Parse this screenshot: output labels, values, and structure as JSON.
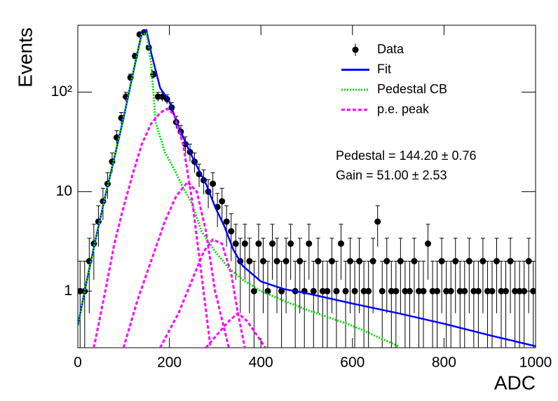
{
  "chart_data": {
    "type": "errorbar",
    "x_label": "ADC",
    "y_label": "Events",
    "log_y": true,
    "legend_position": "upper-right",
    "xlim": [
      0,
      1000
    ],
    "ylim": [
      0.27,
      470
    ],
    "xticks": [
      0,
      200,
      400,
      600,
      800,
      1000
    ],
    "yticks": [
      1,
      10,
      {
        "value": 100,
        "label": "10²"
      }
    ],
    "annotations": [
      "Pedestal = 144.20 ± 0.76",
      "Gain = 51.00 ± 2.53"
    ],
    "series": [
      {
        "name": "Data",
        "type": "errorbar",
        "color": "#000000",
        "x": [
          5,
          15,
          25,
          35,
          45,
          55,
          65,
          75,
          85,
          95,
          105,
          115,
          125,
          135,
          145,
          155,
          165,
          175,
          185,
          195,
          205,
          215,
          225,
          235,
          245,
          255,
          265,
          275,
          285,
          295,
          305,
          315,
          325,
          335,
          345,
          355,
          365,
          375,
          385,
          395,
          405,
          415,
          425,
          435,
          445,
          455,
          465,
          475,
          485,
          495,
          505,
          515,
          525,
          535,
          545,
          555,
          565,
          575,
          585,
          595,
          605,
          615,
          625,
          635,
          645,
          655,
          665,
          675,
          685,
          695,
          705,
          715,
          725,
          735,
          745,
          755,
          765,
          775,
          785,
          795,
          805,
          815,
          825,
          835,
          845,
          855,
          865,
          875,
          885,
          895,
          905,
          915,
          925,
          935,
          945,
          955,
          965,
          975,
          985,
          995
        ],
        "values": [
          1,
          1,
          2,
          3,
          5,
          8,
          12,
          20,
          35,
          55,
          90,
          140,
          230,
          380,
          400,
          280,
          150,
          90,
          90,
          85,
          70,
          50,
          40,
          30,
          25,
          20,
          15,
          13,
          10,
          12,
          7,
          8,
          5,
          4,
          3,
          2,
          3,
          2,
          1,
          3,
          2,
          1,
          3,
          2,
          1,
          2,
          3,
          1,
          2,
          1,
          3,
          1,
          2,
          1,
          1,
          2,
          1,
          3,
          1,
          2,
          1,
          2,
          1,
          1,
          2,
          5,
          1,
          2,
          1,
          1,
          2,
          1,
          1,
          2,
          1,
          1,
          3,
          1,
          1,
          2,
          1,
          1,
          2,
          1,
          1,
          2,
          1,
          1,
          2,
          1,
          1,
          2,
          1,
          1,
          2,
          1,
          1,
          1,
          2,
          1
        ],
        "errors": [
          1,
          1,
          1.4,
          1.7,
          2.2,
          2.8,
          3.5,
          4.5,
          5.9,
          7.4,
          9.5,
          11.8,
          15.2,
          19.5,
          20,
          16.7,
          12.2,
          9.5,
          9.5,
          9.2,
          8.4,
          7.1,
          6.3,
          5.5,
          5,
          4.5,
          3.9,
          3.6,
          3.2,
          3.5,
          2.6,
          2.8,
          2.2,
          2,
          1.7,
          1.4,
          1.7,
          1.4,
          1,
          1.7,
          1.4,
          1,
          1.7,
          1.4,
          1,
          1.4,
          1.7,
          1,
          1.4,
          1,
          1.7,
          1,
          1.4,
          1,
          1,
          1.4,
          1,
          1.7,
          1,
          1.4,
          1,
          1.4,
          1,
          1,
          1.4,
          2.2,
          1,
          1.4,
          1,
          1,
          1.4,
          1,
          1,
          1.4,
          1,
          1,
          1.7,
          1,
          1,
          1.4,
          1,
          1,
          1.4,
          1,
          1,
          1.4,
          1,
          1,
          1.4,
          1,
          1,
          1.4,
          1,
          1,
          1.4,
          1,
          1,
          1,
          1.4,
          1
        ]
      },
      {
        "name": "Fit",
        "type": "line",
        "color": "#0000ff",
        "line_style": "solid",
        "x": [
          0,
          20,
          40,
          60,
          80,
          100,
          120,
          140,
          150,
          160,
          180,
          200,
          220,
          240,
          260,
          280,
          300,
          320,
          340,
          360,
          400,
          450,
          500,
          600,
          700,
          800,
          900,
          1000
        ],
        "values": [
          0.45,
          1.3,
          3.5,
          9,
          22,
          55,
          150,
          400,
          420,
          250,
          110,
          80,
          45,
          28,
          18,
          12,
          7,
          4.5,
          2.6,
          1.8,
          1.25,
          1.05,
          0.95,
          0.75,
          0.6,
          0.47,
          0.36,
          0.28
        ]
      },
      {
        "name": "Pedestal CB",
        "type": "line",
        "color": "#00dd00",
        "line_style": "dotted",
        "x": [
          0,
          20,
          40,
          60,
          80,
          100,
          120,
          140,
          150,
          160,
          170,
          190,
          210,
          230,
          250,
          270,
          300,
          330,
          360,
          400,
          450,
          500,
          600,
          700
        ],
        "values": [
          0.45,
          1.3,
          3.5,
          9,
          22,
          55,
          150,
          380,
          390,
          200,
          50,
          25,
          17,
          11,
          7.5,
          4,
          2.5,
          1.7,
          1.3,
          1.0,
          0.8,
          0.65,
          0.45,
          0.28
        ]
      },
      {
        "name": "p.e. peak",
        "type": "line",
        "color": "#ff00ff",
        "line_style": "dashed",
        "x": [
          35,
          60,
          80,
          100,
          120,
          140,
          160,
          180,
          195,
          210,
          230,
          250,
          270,
          290,
          null,
          100,
          130,
          160,
          190,
          215,
          240,
          260,
          280,
          300,
          330,
          null,
          180,
          220,
          250,
          275,
          295,
          315,
          335,
          350,
          365,
          null,
          280,
          330,
          350,
          370,
          410
        ],
        "values": [
          0.27,
          1,
          3,
          7,
          15,
          30,
          48,
          62,
          68,
          60,
          30,
          8,
          1.5,
          0.27,
          null,
          0.27,
          0.8,
          2,
          5,
          9,
          12.5,
          10,
          4,
          1,
          0.27,
          null,
          0.27,
          0.6,
          1.3,
          2.5,
          3.3,
          3,
          1.5,
          0.6,
          0.27,
          null,
          0.27,
          0.5,
          0.6,
          0.5,
          0.27
        ]
      }
    ]
  }
}
